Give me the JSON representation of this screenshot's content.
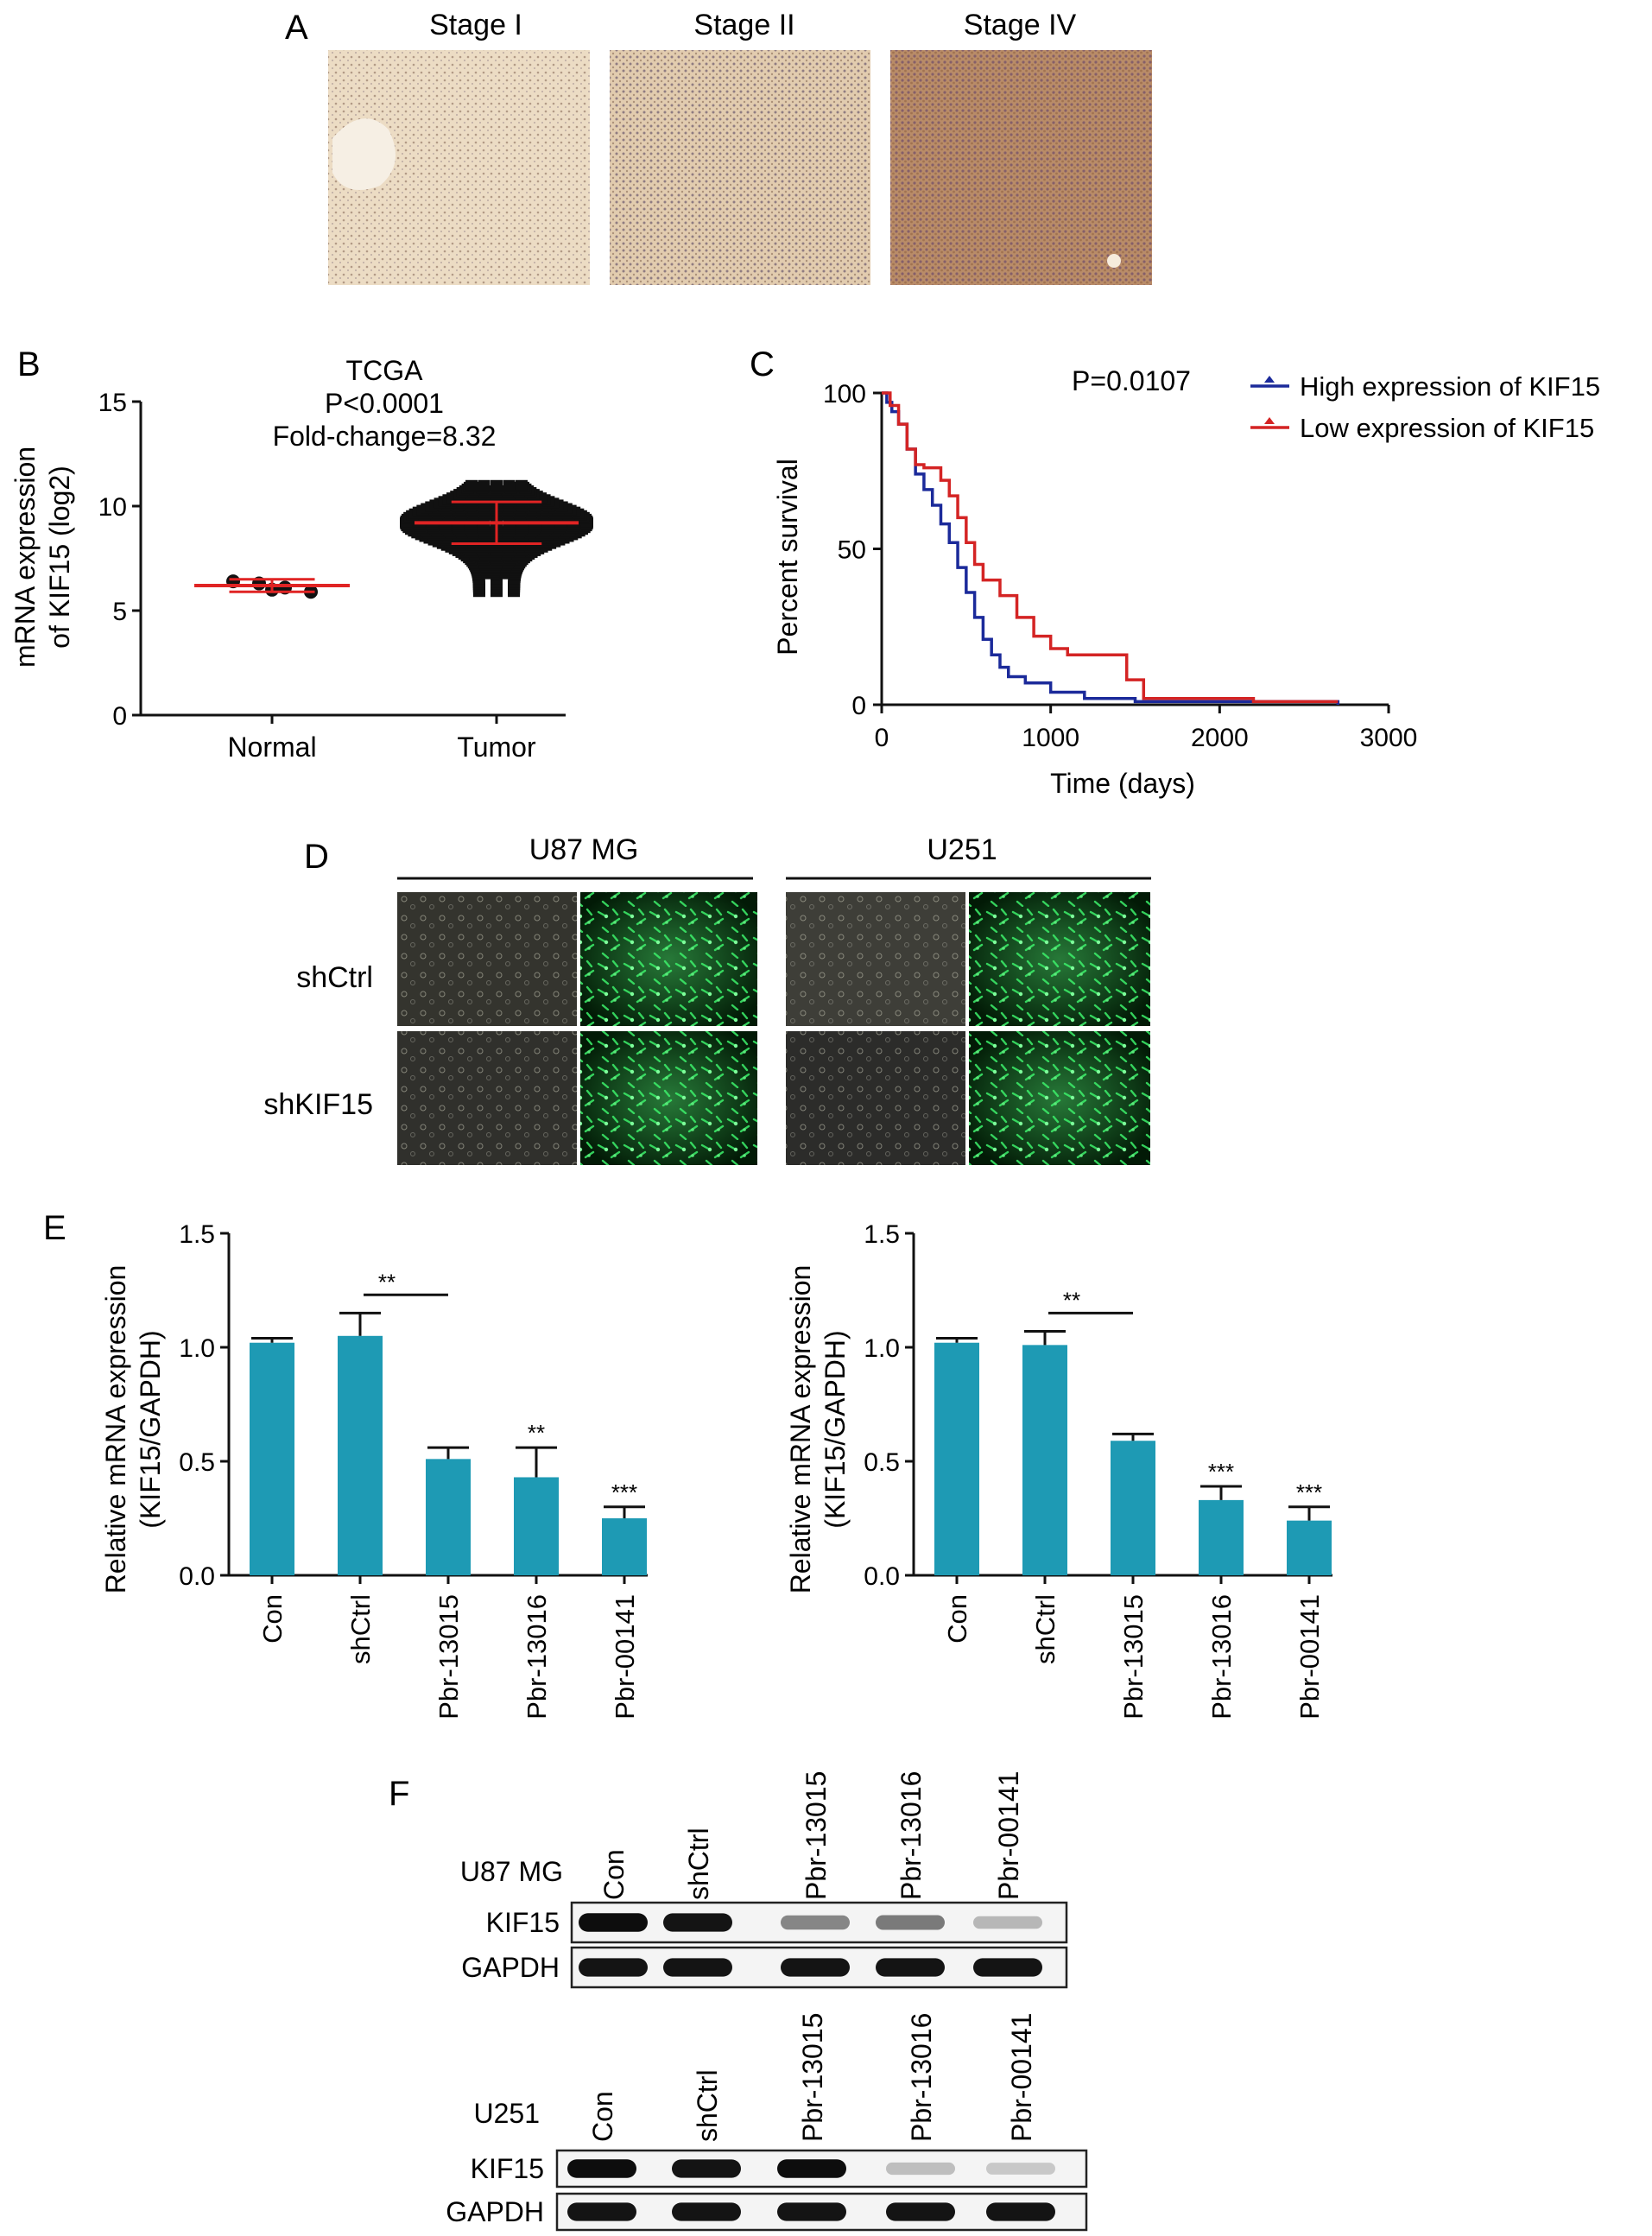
{
  "panel_labels": {
    "a": "A",
    "b": "B",
    "c": "C",
    "d": "D",
    "e": "E",
    "f": "F"
  },
  "panel_a": {
    "titles": [
      "Stage I",
      "Stage II",
      "Stage IV"
    ]
  },
  "panel_b": {
    "title_lines": [
      "TCGA",
      "P<0.0001",
      "Fold-change=8.32"
    ],
    "ylabel_lines": [
      "mRNA expression",
      "of KIF15 (log2)"
    ]
  },
  "panel_c": {
    "pvalue": "P=0.0107",
    "ylabel": "Percent survival",
    "xlabel": "Time (days)"
  },
  "panel_d": {
    "columns": [
      "U87 MG",
      "U251"
    ],
    "rows": [
      "shCtrl",
      "shKIF15"
    ]
  },
  "panel_e": {
    "ylabel_lines": [
      "Relative mRNA expression",
      "(KIF15/GAPDH)"
    ]
  },
  "panel_f": {
    "u87": {
      "cell_line": "U87 MG",
      "lanes": [
        "Con",
        "shCtrl",
        "Pbr-13015",
        "Pbr-13016",
        "Pbr-00141"
      ],
      "bands": [
        "KIF15",
        "GAPDH"
      ],
      "kif15_intensity": [
        0.95,
        0.92,
        0.45,
        0.5,
        0.25
      ],
      "gapdh_intensity": [
        0.92,
        0.92,
        0.92,
        0.92,
        0.92
      ]
    },
    "u251": {
      "cell_line": "U251",
      "lanes": [
        "Con",
        "shCtrl",
        "Pbr-13015",
        "Pbr-13016",
        "Pbr-00141"
      ],
      "bands": [
        "KIF15",
        "GAPDH"
      ],
      "kif15_intensity": [
        0.95,
        0.92,
        0.95,
        0.22,
        0.18
      ],
      "gapdh_intensity": [
        0.92,
        0.92,
        0.92,
        0.92,
        0.92
      ]
    }
  },
  "colors": {
    "bar": "#1e9ab4",
    "high_expression": "#1b2a9a",
    "low_expression": "#d42424",
    "mean_line": "#e02424",
    "stain_low": "#e6d1b5",
    "stain_high": "#b88a63",
    "gfp": "#18c23c"
  },
  "chart_data": [
    {
      "id": "B",
      "type": "scatter",
      "title": "TCGA P<0.0001 Fold-change=8.32",
      "ylabel": "mRNA expression of KIF15 (log2)",
      "categories": [
        "Normal",
        "Tumor"
      ],
      "ylim": [
        0,
        15
      ],
      "yticks": [
        "0",
        "5",
        "10",
        "15"
      ],
      "series": [
        {
          "category": "Normal",
          "mean": 6.2,
          "sd": 0.3,
          "values": [
            6.4,
            6.3,
            6.1,
            5.9,
            6.0
          ]
        },
        {
          "category": "Tumor",
          "mean": 9.2,
          "sd": 1.0,
          "range": [
            5.9,
            11.0
          ]
        }
      ]
    },
    {
      "id": "C",
      "type": "line",
      "xlabel": "Time (days)",
      "ylabel": "Percent survival",
      "xlim": [
        0,
        3000
      ],
      "ylim": [
        0,
        100
      ],
      "xticks": [
        "0",
        "1000",
        "2000",
        "3000"
      ],
      "yticks": [
        "0",
        "50",
        "100"
      ],
      "annotation": "P=0.0107",
      "legend_position": "top-right",
      "series": [
        {
          "name": "High expression of KIF15",
          "color": "#1b2a9a",
          "points": [
            [
              0,
              100
            ],
            [
              30,
              97
            ],
            [
              60,
              94
            ],
            [
              100,
              90
            ],
            [
              150,
              82
            ],
            [
              200,
              74
            ],
            [
              250,
              69
            ],
            [
              300,
              64
            ],
            [
              350,
              58
            ],
            [
              400,
              52
            ],
            [
              450,
              44
            ],
            [
              500,
              36
            ],
            [
              550,
              28
            ],
            [
              600,
              21
            ],
            [
              650,
              16
            ],
            [
              700,
              12
            ],
            [
              750,
              9
            ],
            [
              850,
              7
            ],
            [
              1000,
              4
            ],
            [
              1200,
              2
            ],
            [
              1500,
              1
            ],
            [
              2000,
              1
            ],
            [
              2700,
              0
            ]
          ]
        },
        {
          "name": "Low expression of KIF15",
          "color": "#d42424",
          "points": [
            [
              0,
              100
            ],
            [
              50,
              96
            ],
            [
              100,
              90
            ],
            [
              150,
              82
            ],
            [
              200,
              77
            ],
            [
              250,
              76
            ],
            [
              300,
              76
            ],
            [
              350,
              72
            ],
            [
              400,
              67
            ],
            [
              450,
              60
            ],
            [
              500,
              52
            ],
            [
              550,
              45
            ],
            [
              600,
              40
            ],
            [
              700,
              35
            ],
            [
              800,
              28
            ],
            [
              900,
              22
            ],
            [
              1000,
              18
            ],
            [
              1100,
              16
            ],
            [
              1350,
              16
            ],
            [
              1450,
              8
            ],
            [
              1550,
              2
            ],
            [
              2200,
              2
            ],
            [
              2200,
              1
            ],
            [
              2700,
              1
            ]
          ]
        }
      ]
    },
    {
      "id": "E-left",
      "type": "bar",
      "ylabel": "Relative mRNA expression (KIF15/GAPDH)",
      "categories": [
        "Con",
        "shCtrl",
        "Pbr-13015",
        "Pbr-13016",
        "Pbr-00141"
      ],
      "values": [
        1.02,
        1.05,
        0.51,
        0.43,
        0.25
      ],
      "errors": [
        0.02,
        0.1,
        0.05,
        0.13,
        0.05
      ],
      "ylim": [
        0,
        1.5
      ],
      "yticks": [
        "0.0",
        "0.5",
        "1.0",
        "1.5"
      ],
      "significance": [
        "",
        "",
        "",
        "**",
        "***"
      ],
      "bracket": {
        "from": "shCtrl",
        "to": "Pbr-13015",
        "label": "**"
      }
    },
    {
      "id": "E-right",
      "type": "bar",
      "ylabel": "Relative mRNA expression (KIF15/GAPDH)",
      "categories": [
        "Con",
        "shCtrl",
        "Pbr-13015",
        "Pbr-13016",
        "Pbr-00141"
      ],
      "values": [
        1.02,
        1.01,
        0.59,
        0.33,
        0.24
      ],
      "errors": [
        0.02,
        0.06,
        0.03,
        0.06,
        0.06
      ],
      "ylim": [
        0,
        1.5
      ],
      "yticks": [
        "0.0",
        "0.5",
        "1.0",
        "1.5"
      ],
      "significance": [
        "",
        "",
        "",
        "***",
        "***"
      ],
      "bracket": {
        "from": "shCtrl",
        "to": "Pbr-13015",
        "label": "**"
      }
    }
  ]
}
